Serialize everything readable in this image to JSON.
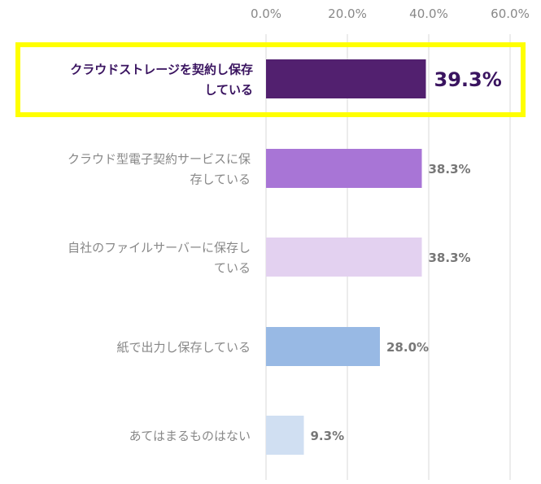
{
  "chart_data": {
    "type": "bar",
    "orientation": "horizontal",
    "categories": [
      [
        "クラウドストレージを契約し保存",
        "している"
      ],
      [
        "クラウド型電子契約サービスに保",
        "存している"
      ],
      [
        "自社のファイルサーバーに保存し",
        "ている"
      ],
      [
        "紙で出力し保存している"
      ],
      [
        "あてはまるものはない"
      ]
    ],
    "values": [
      39.3,
      38.3,
      38.3,
      28.0,
      9.3
    ],
    "value_labels": [
      "39.3%",
      "38.3%",
      "38.3%",
      "28.0%",
      "9.3%"
    ],
    "bar_colors": [
      "#52206f",
      "#a875d6",
      "#e3d1f0",
      "#98b9e4",
      "#d0dff2"
    ],
    "highlight_index": 0,
    "highlight_color": "#ffff00",
    "xlim": [
      0,
      60
    ],
    "ticks": [
      "0.0%",
      "20.0%",
      "40.0%",
      "60.0%"
    ],
    "tick_values": [
      0,
      20,
      40,
      60
    ],
    "grid": true,
    "gridline_color": "#d9d9d9"
  }
}
